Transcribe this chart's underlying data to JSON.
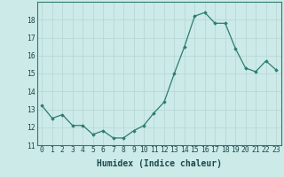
{
  "x": [
    0,
    1,
    2,
    3,
    4,
    5,
    6,
    7,
    8,
    9,
    10,
    11,
    12,
    13,
    14,
    15,
    16,
    17,
    18,
    19,
    20,
    21,
    22,
    23
  ],
  "y": [
    13.2,
    12.5,
    12.7,
    12.1,
    12.1,
    11.6,
    11.8,
    11.4,
    11.4,
    11.8,
    12.1,
    12.8,
    13.4,
    15.0,
    16.5,
    18.2,
    18.4,
    17.8,
    17.8,
    16.4,
    15.3,
    15.1,
    15.7,
    15.2
  ],
  "xlabel": "Humidex (Indice chaleur)",
  "ylim": [
    11,
    19
  ],
  "xlim": [
    -0.5,
    23.5
  ],
  "yticks": [
    11,
    12,
    13,
    14,
    15,
    16,
    17,
    18
  ],
  "xticks": [
    0,
    1,
    2,
    3,
    4,
    5,
    6,
    7,
    8,
    9,
    10,
    11,
    12,
    13,
    14,
    15,
    16,
    17,
    18,
    19,
    20,
    21,
    22,
    23
  ],
  "line_color": "#2d7d6e",
  "marker_color": "#2d7d6e",
  "bg_color": "#cceae8",
  "grid_color": "#b8d8d5",
  "tick_label_fontsize": 5.8,
  "xlabel_fontsize": 7.0
}
